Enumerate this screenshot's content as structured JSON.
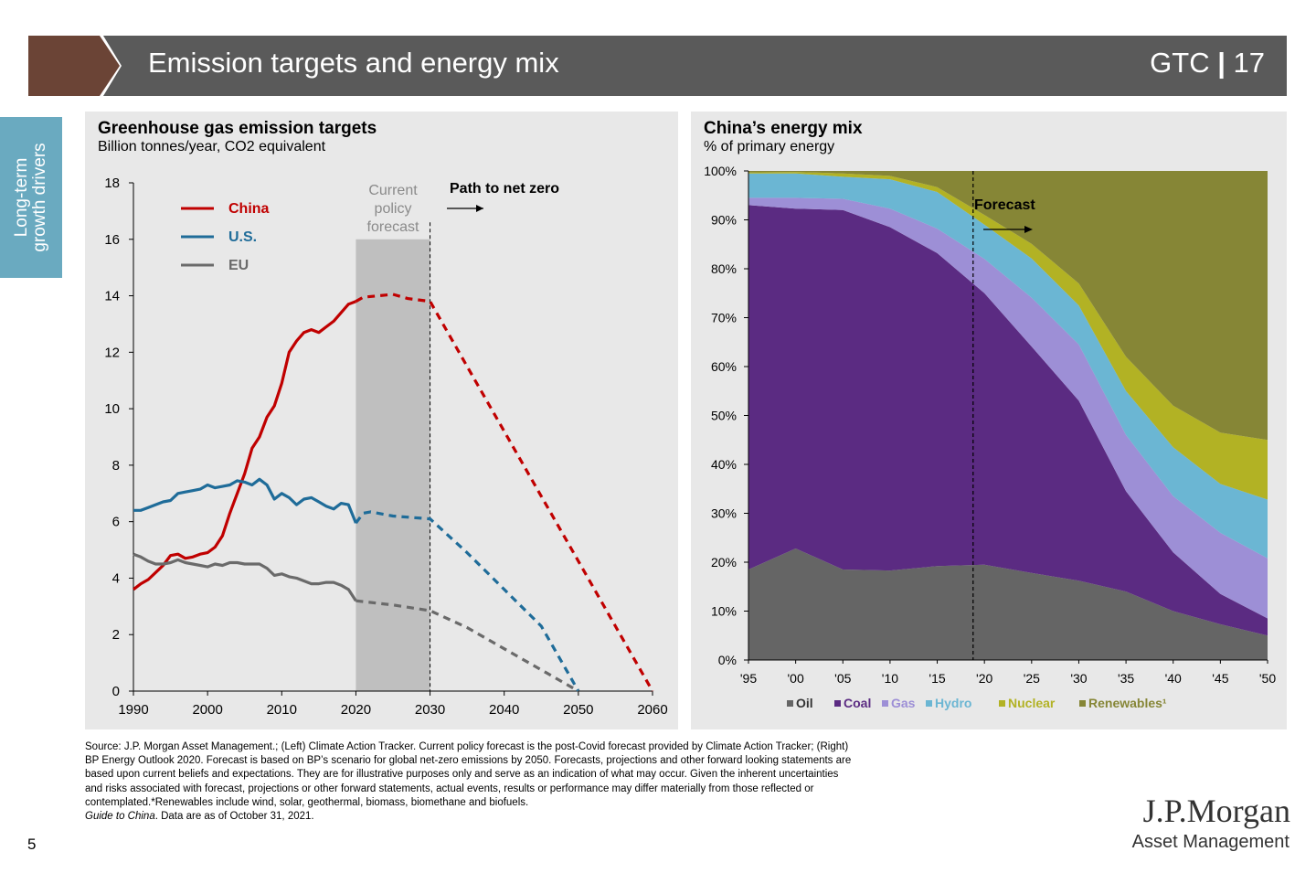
{
  "header": {
    "title": "Emission targets and energy mix",
    "code": "GTC",
    "separator": "|",
    "page_ref": "17",
    "bar_color": "#5a5a5a",
    "accent_color": "#6b4436"
  },
  "sidebar": {
    "line1": "Long-term",
    "line2": "growth drivers",
    "color": "#6aaac0"
  },
  "left_panel": {
    "title": "Greenhouse gas emission targets",
    "subtitle": "Billion tonnes/year, CO2 equivalent"
  },
  "right_panel": {
    "title": "China’s energy mix",
    "subtitle": "% of primary energy"
  },
  "chart_data": [
    {
      "type": "line",
      "title": "Greenhouse gas emission targets",
      "ylabel": "Billion tonnes/year, CO2 equivalent",
      "xlim": [
        1990,
        2060
      ],
      "ylim": [
        0,
        18
      ],
      "x_ticks": [
        "1990",
        "2000",
        "2010",
        "2020",
        "2030",
        "2040",
        "2050",
        "2060"
      ],
      "y_ticks": [
        "0",
        "2",
        "4",
        "6",
        "8",
        "10",
        "12",
        "14",
        "16",
        "18"
      ],
      "shaded_region": {
        "x0": 2020,
        "x1": 2030,
        "label_lines": [
          "Current",
          "policy",
          "forecast"
        ]
      },
      "annotation": "Path to net zero",
      "legend": [
        "China",
        "U.S.",
        "EU"
      ],
      "series": [
        {
          "name": "China",
          "color": "#c00000",
          "x": [
            1990,
            1991,
            1992,
            1993,
            1994,
            1995,
            1996,
            1997,
            1998,
            1999,
            2000,
            2001,
            2002,
            2003,
            2004,
            2005,
            2006,
            2007,
            2008,
            2009,
            2010,
            2011,
            2012,
            2013,
            2014,
            2015,
            2016,
            2017,
            2018,
            2019,
            2020
          ],
          "y": [
            3.6,
            3.8,
            3.95,
            4.2,
            4.45,
            4.8,
            4.85,
            4.7,
            4.75,
            4.85,
            4.9,
            5.1,
            5.5,
            6.3,
            7.0,
            7.7,
            8.6,
            9.0,
            9.7,
            10.1,
            10.9,
            12.0,
            12.4,
            12.7,
            12.8,
            12.7,
            12.9,
            13.1,
            13.4,
            13.7,
            13.8
          ],
          "forecast_x": [
            2020,
            2021,
            2023,
            2025,
            2027,
            2030,
            2035,
            2040,
            2045,
            2050,
            2055,
            2060
          ],
          "forecast_y": [
            13.8,
            13.95,
            14.0,
            14.05,
            13.9,
            13.8,
            11.5,
            9.2,
            6.9,
            4.6,
            2.3,
            0.0
          ]
        },
        {
          "name": "U.S.",
          "color": "#1f6c99",
          "x": [
            1990,
            1991,
            1992,
            1993,
            1994,
            1995,
            1996,
            1997,
            1998,
            1999,
            2000,
            2001,
            2002,
            2003,
            2004,
            2005,
            2006,
            2007,
            2008,
            2009,
            2010,
            2011,
            2012,
            2013,
            2014,
            2015,
            2016,
            2017,
            2018,
            2019,
            2020
          ],
          "y": [
            6.4,
            6.4,
            6.5,
            6.6,
            6.7,
            6.75,
            7.0,
            7.05,
            7.1,
            7.15,
            7.3,
            7.2,
            7.25,
            7.3,
            7.45,
            7.4,
            7.3,
            7.5,
            7.3,
            6.8,
            7.0,
            6.85,
            6.6,
            6.8,
            6.85,
            6.7,
            6.55,
            6.45,
            6.65,
            6.6,
            5.95
          ],
          "forecast_x": [
            2020,
            2021,
            2022,
            2025,
            2030,
            2035,
            2040,
            2045,
            2050
          ],
          "forecast_y": [
            5.95,
            6.3,
            6.35,
            6.2,
            6.1,
            4.9,
            3.6,
            2.3,
            0.0
          ]
        },
        {
          "name": "EU",
          "color": "#6a6a6a",
          "x": [
            1990,
            1991,
            1992,
            1993,
            1994,
            1995,
            1996,
            1997,
            1998,
            1999,
            2000,
            2001,
            2002,
            2003,
            2004,
            2005,
            2006,
            2007,
            2008,
            2009,
            2010,
            2011,
            2012,
            2013,
            2014,
            2015,
            2016,
            2017,
            2018,
            2019,
            2020
          ],
          "y": [
            4.85,
            4.75,
            4.6,
            4.5,
            4.5,
            4.55,
            4.65,
            4.55,
            4.5,
            4.45,
            4.4,
            4.5,
            4.45,
            4.55,
            4.55,
            4.5,
            4.5,
            4.5,
            4.35,
            4.1,
            4.15,
            4.05,
            4.0,
            3.9,
            3.8,
            3.8,
            3.85,
            3.85,
            3.75,
            3.6,
            3.2
          ],
          "forecast_x": [
            2020,
            2025,
            2030,
            2035,
            2040,
            2045,
            2050
          ],
          "forecast_y": [
            3.2,
            3.05,
            2.85,
            2.25,
            1.5,
            0.75,
            0.0
          ]
        }
      ]
    },
    {
      "type": "area",
      "title": "China’s energy mix",
      "ylabel": "% of primary energy",
      "categories": [
        "'95",
        "'00",
        "'05",
        "'10",
        "'15",
        "'20",
        "'25",
        "'30",
        "'35",
        "'40",
        "'45",
        "'50"
      ],
      "x": [
        1995,
        2000,
        2005,
        2010,
        2015,
        2020,
        2025,
        2030,
        2035,
        2040,
        2045,
        2050
      ],
      "ylim": [
        0,
        100
      ],
      "y_ticks": [
        "0%",
        "10%",
        "20%",
        "30%",
        "40%",
        "50%",
        "60%",
        "70%",
        "80%",
        "90%",
        "100%"
      ],
      "forecast_label": "Forecast",
      "forecast_start": 2018.8,
      "footnote_marker": "¹",
      "series": [
        {
          "name": "Oil",
          "color": "#656565",
          "values": [
            18.5,
            22.8,
            18.5,
            18.3,
            19.2,
            19.5,
            17.8,
            16.2,
            14.0,
            10.0,
            7.3,
            5.0
          ]
        },
        {
          "name": "Coal",
          "color": "#5b2b82",
          "values": [
            74.5,
            69.5,
            73.5,
            70.2,
            64.0,
            55.5,
            46.3,
            36.8,
            20.5,
            12.0,
            6.2,
            3.5
          ]
        },
        {
          "name": "Gas",
          "color": "#9d8fd6",
          "values": [
            1.5,
            2.2,
            2.3,
            3.8,
            5.0,
            7.0,
            10.0,
            11.5,
            11.5,
            11.5,
            12.5,
            12.3
          ]
        },
        {
          "name": "Hydro",
          "color": "#6bb6d3",
          "values": [
            5.0,
            5.0,
            4.5,
            6.0,
            7.5,
            7.0,
            8.0,
            8.0,
            9.0,
            10.0,
            10.0,
            12.0
          ]
        },
        {
          "name": "Nuclear",
          "color": "#b2b224",
          "values": [
            0.2,
            0.3,
            0.7,
            0.7,
            1.0,
            2.0,
            3.0,
            4.5,
            7.0,
            8.5,
            10.5,
            12.2
          ]
        },
        {
          "name": "Renewables",
          "color": "#868636",
          "values": [
            0.3,
            0.2,
            0.5,
            1.0,
            3.3,
            9.0,
            14.9,
            23.0,
            38.0,
            48.0,
            53.5,
            55.0
          ]
        }
      ]
    }
  ],
  "footnote": {
    "lines": [
      "Source: J.P. Morgan Asset Management.; (Left) Climate Action Tracker. Current policy forecast is the post-Covid forecast provided by Climate Action Tracker; (Right)",
      "BP Energy Outlook 2020. Forecast is based on BP’s scenario for global net-zero emissions by 2050. Forecasts, projections and other forward looking statements are",
      "based upon current beliefs and expectations. They are for illustrative purposes only and serve as an indication of what may occur. Given the inherent uncertainties",
      "and risks associated with forecast, projections or other forward statements, actual events, results or performance may differ materially from those reflected or",
      "contemplated.*Renewables include wind, solar, geothermal, biomass, biomethane and biofuels."
    ],
    "guide": "Guide to China",
    "as_of": ". Data are as of October 31, 2021."
  },
  "page_number": "5",
  "logo": {
    "name": "J.P.Morgan",
    "tagline": "Asset Management"
  }
}
